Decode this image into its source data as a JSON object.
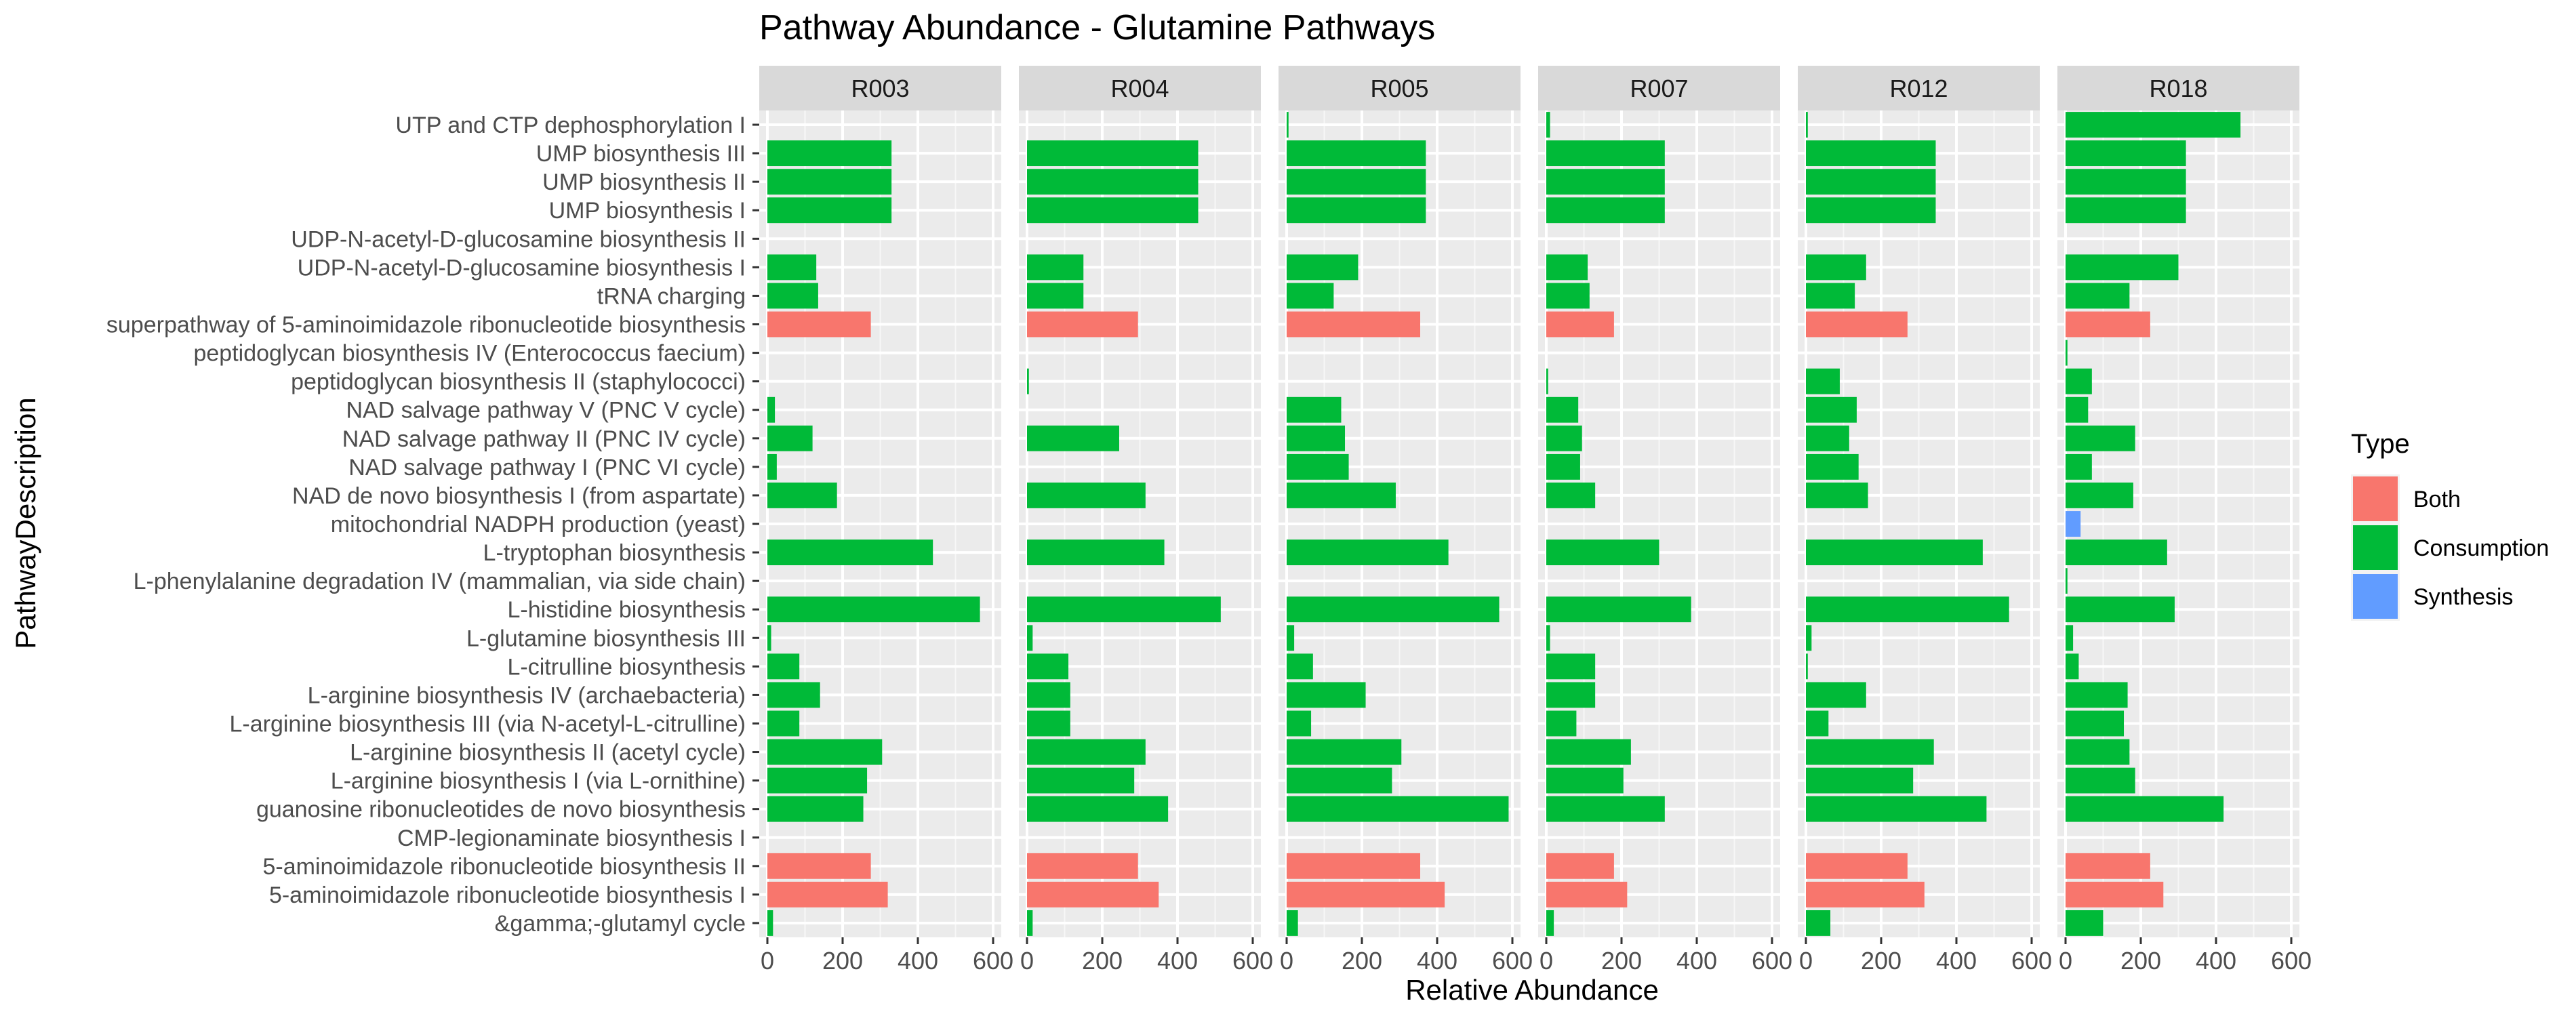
{
  "chart_data": {
    "type": "bar",
    "orientation": "horizontal",
    "facet_by": "sample",
    "title": "Pathway Abundance - Glutamine Pathways",
    "xlabel": "Relative Abundance",
    "ylabel": "PathwayDescription",
    "xlim": [
      0,
      600
    ],
    "xticks": [
      0,
      200,
      400,
      600
    ],
    "grid": true,
    "legend": {
      "title": "Type",
      "position": "right",
      "entries": [
        {
          "name": "Both",
          "color": "#F8766D"
        },
        {
          "name": "Consumption",
          "color": "#00BA38"
        },
        {
          "name": "Synthesis",
          "color": "#619CFF"
        }
      ]
    },
    "categories": [
      "&gamma;-glutamyl cycle",
      "5-aminoimidazole ribonucleotide biosynthesis I",
      "5-aminoimidazole ribonucleotide biosynthesis II",
      "CMP-legionaminate biosynthesis I",
      "guanosine ribonucleotides de novo biosynthesis",
      "L-arginine biosynthesis I (via L-ornithine)",
      "L-arginine biosynthesis II (acetyl cycle)",
      "L-arginine biosynthesis III (via N-acetyl-L-citrulline)",
      "L-arginine biosynthesis IV (archaebacteria)",
      "L-citrulline biosynthesis",
      "L-glutamine biosynthesis III",
      "L-histidine biosynthesis",
      "L-phenylalanine degradation IV (mammalian, via side chain)",
      "L-tryptophan biosynthesis",
      "mitochondrial NADPH production (yeast)",
      "NAD de novo biosynthesis I (from aspartate)",
      "NAD salvage pathway I (PNC VI cycle)",
      "NAD salvage pathway II (PNC IV cycle)",
      "NAD salvage pathway V (PNC V cycle)",
      "peptidoglycan biosynthesis II (staphylococci)",
      "peptidoglycan biosynthesis IV (Enterococcus faecium)",
      "superpathway of 5-aminoimidazole ribonucleotide biosynthesis",
      "tRNA charging",
      "UDP-N-acetyl-D-glucosamine biosynthesis I",
      "UDP-N-acetyl-D-glucosamine biosynthesis II",
      "UMP biosynthesis I",
      "UMP biosynthesis II",
      "UMP biosynthesis III",
      "UTP and CTP dephosphorylation I"
    ],
    "category_types": [
      "Consumption",
      "Both",
      "Both",
      "Consumption",
      "Consumption",
      "Consumption",
      "Consumption",
      "Consumption",
      "Consumption",
      "Consumption",
      "Consumption",
      "Consumption",
      "Consumption",
      "Consumption",
      "Synthesis",
      "Consumption",
      "Consumption",
      "Consumption",
      "Consumption",
      "Consumption",
      "Consumption",
      "Both",
      "Consumption",
      "Consumption",
      "Consumption",
      "Consumption",
      "Consumption",
      "Consumption",
      "Consumption"
    ],
    "series": [
      {
        "name": "R003",
        "values": [
          15,
          320,
          275,
          0,
          255,
          265,
          305,
          85,
          140,
          85,
          10,
          565,
          0,
          440,
          0,
          185,
          25,
          120,
          20,
          0,
          0,
          275,
          135,
          130,
          0,
          330,
          330,
          330,
          0
        ]
      },
      {
        "name": "R004",
        "values": [
          15,
          350,
          295,
          0,
          375,
          285,
          315,
          115,
          115,
          110,
          15,
          515,
          0,
          365,
          0,
          315,
          0,
          245,
          0,
          5,
          0,
          295,
          150,
          150,
          0,
          455,
          455,
          455,
          0
        ]
      },
      {
        "name": "R005",
        "values": [
          30,
          420,
          355,
          0,
          590,
          280,
          305,
          65,
          210,
          70,
          20,
          565,
          0,
          430,
          0,
          290,
          165,
          155,
          145,
          0,
          0,
          355,
          125,
          190,
          0,
          370,
          370,
          370,
          5
        ]
      },
      {
        "name": "R007",
        "values": [
          20,
          215,
          180,
          0,
          315,
          205,
          225,
          80,
          130,
          130,
          10,
          385,
          0,
          300,
          0,
          130,
          90,
          95,
          85,
          5,
          0,
          180,
          115,
          110,
          0,
          315,
          315,
          315,
          10
        ]
      },
      {
        "name": "R012",
        "values": [
          65,
          315,
          270,
          0,
          480,
          285,
          340,
          60,
          160,
          5,
          15,
          540,
          0,
          470,
          0,
          165,
          140,
          115,
          135,
          90,
          0,
          270,
          130,
          160,
          0,
          345,
          345,
          345,
          5
        ]
      },
      {
        "name": "R018",
        "values": [
          100,
          260,
          225,
          0,
          420,
          185,
          170,
          155,
          165,
          35,
          20,
          290,
          5,
          270,
          40,
          180,
          70,
          185,
          60,
          70,
          5,
          225,
          170,
          300,
          0,
          320,
          320,
          320,
          465
        ]
      }
    ]
  }
}
